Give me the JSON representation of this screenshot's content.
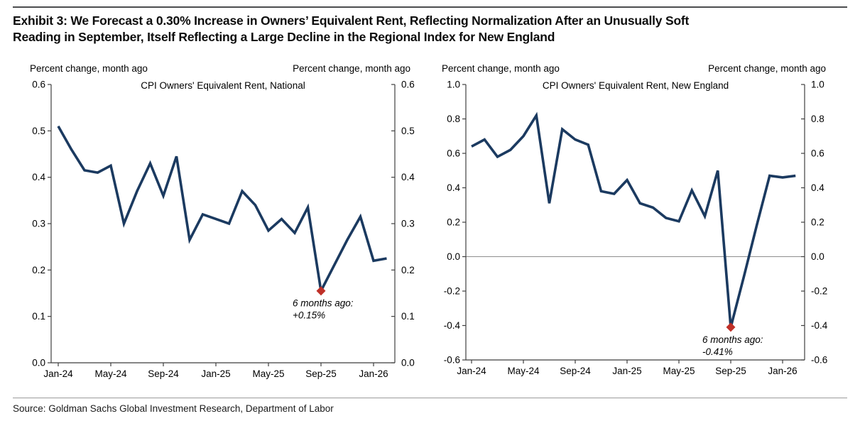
{
  "page": {
    "exhibit_title_line1": "Exhibit 3: We Forecast a 0.30% Increase in Owners’ Equivalent Rent, Reflecting Normalization After an Unusually Soft",
    "exhibit_title_line2": "Reading in September, Itself Reflecting a Large Decline in the Regional Index for New England",
    "source_text": "Source: Goldman Sachs Global Investment Research, Department of Labor"
  },
  "colors": {
    "line_navy": "#1b3a60",
    "marker_red": "#bf3028",
    "annotation_red": "#c23b33",
    "axis": "#3f3f3f",
    "zero_line": "#8f8f8f",
    "text": "#000000"
  },
  "chart_data": [
    {
      "type": "line",
      "title": "CPI Owners' Equivalent Rent, National",
      "ylabel_left": "Percent change, month ago",
      "ylabel_right": "Percent change, month ago",
      "ylim": [
        0.0,
        0.6
      ],
      "y_step": 0.1,
      "x_tick_every": 4,
      "x_tick_labels": [
        "Jan-24",
        "May-24",
        "Sep-24",
        "Jan-25",
        "May-25",
        "Sep-25",
        "Jan-26"
      ],
      "x": [
        "Jan-24",
        "Feb-24",
        "Mar-24",
        "Apr-24",
        "May-24",
        "Jun-24",
        "Jul-24",
        "Aug-24",
        "Sep-24",
        "Oct-24",
        "Nov-24",
        "Dec-24",
        "Jan-25",
        "Feb-25",
        "Mar-25",
        "Apr-25",
        "May-25",
        "Jun-25",
        "Jul-25",
        "Aug-25",
        "Sep-25",
        "Oct-25",
        "Nov-25",
        "Dec-25",
        "Jan-26",
        "Feb-26"
      ],
      "values": [
        0.51,
        0.46,
        0.415,
        0.41,
        0.425,
        0.3,
        0.37,
        0.43,
        0.36,
        0.445,
        0.265,
        0.32,
        0.31,
        0.3,
        0.37,
        0.34,
        0.285,
        0.31,
        0.28,
        0.335,
        0.155,
        0.21,
        0.265,
        0.315,
        0.22,
        0.225
      ],
      "zero_line": false,
      "marker": {
        "index": 20,
        "month": "Sep-25",
        "value": 0.155,
        "annotation": [
          "6 months ago:",
          "+0.15%"
        ]
      }
    },
    {
      "type": "line",
      "title": "CPI Owners' Equivalent Rent, New England",
      "ylabel_left": "Percent change, month ago",
      "ylabel_right": "Percent change, month ago",
      "ylim": [
        -0.6,
        1.0
      ],
      "y_step": 0.2,
      "x_tick_every": 4,
      "x_tick_labels": [
        "Jan-24",
        "May-24",
        "Sep-24",
        "Jan-25",
        "May-25",
        "Sep-25",
        "Jan-26"
      ],
      "x": [
        "Jan-24",
        "Feb-24",
        "Mar-24",
        "Apr-24",
        "May-24",
        "Jun-24",
        "Jul-24",
        "Aug-24",
        "Sep-24",
        "Oct-24",
        "Nov-24",
        "Dec-24",
        "Jan-25",
        "Feb-25",
        "Mar-25",
        "Apr-25",
        "May-25",
        "Jun-25",
        "Jul-25",
        "Aug-25",
        "Sep-25",
        "Oct-25",
        "Nov-25",
        "Dec-25",
        "Jan-26",
        "Feb-26"
      ],
      "values": [
        0.64,
        0.68,
        0.58,
        0.62,
        0.7,
        0.82,
        0.31,
        0.74,
        0.68,
        0.65,
        0.38,
        0.365,
        0.445,
        0.31,
        0.285,
        0.225,
        0.205,
        0.385,
        0.235,
        0.5,
        -0.41,
        -0.12,
        0.18,
        0.47,
        0.46,
        0.47
      ],
      "zero_line": true,
      "marker": {
        "index": 20,
        "month": "Sep-25",
        "value": -0.41,
        "annotation": [
          "6 months ago:",
          "-0.41%"
        ]
      }
    }
  ]
}
